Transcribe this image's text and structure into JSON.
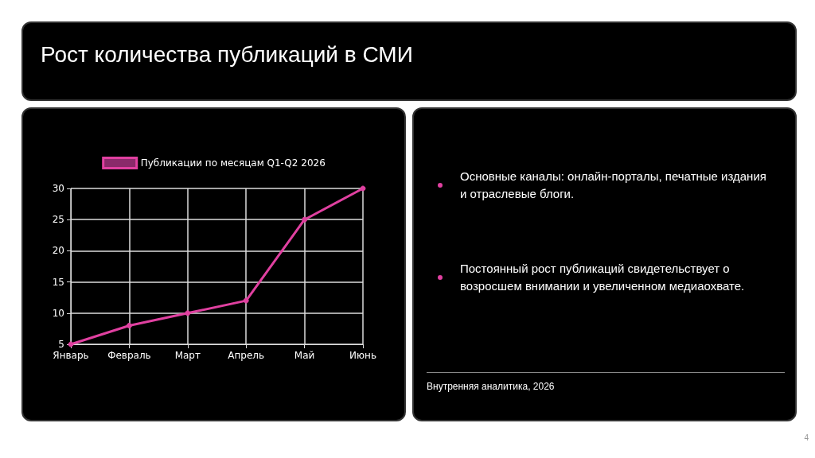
{
  "chart_data": {
    "type": "line",
    "title": "Рост количества публикаций в СМИ",
    "categories": [
      "Январь",
      "Февраль",
      "Март",
      "Апрель",
      "Май",
      "Июнь"
    ],
    "series": [
      {
        "name": "Публикации по месяцам Q1-Q2 2026",
        "color": "#e040a0",
        "values": [
          5,
          8,
          10,
          12,
          25,
          30
        ]
      }
    ],
    "ylim": [
      5,
      30
    ],
    "yticks": [
      5,
      10,
      15,
      20,
      25,
      30
    ],
    "grid": true,
    "legend": "top",
    "marker": "circle",
    "line_style": "solid",
    "annotations": [
      "Основные каналы: онлайн-порталы, печатные издания и отраслевые блоги.",
      "Постоянный рост публикаций свидетельствует о возросшем внимании и увеличенном медиаохвате.",
      "Внутренняя аналитика, 2026",
      "4"
    ]
  }
}
